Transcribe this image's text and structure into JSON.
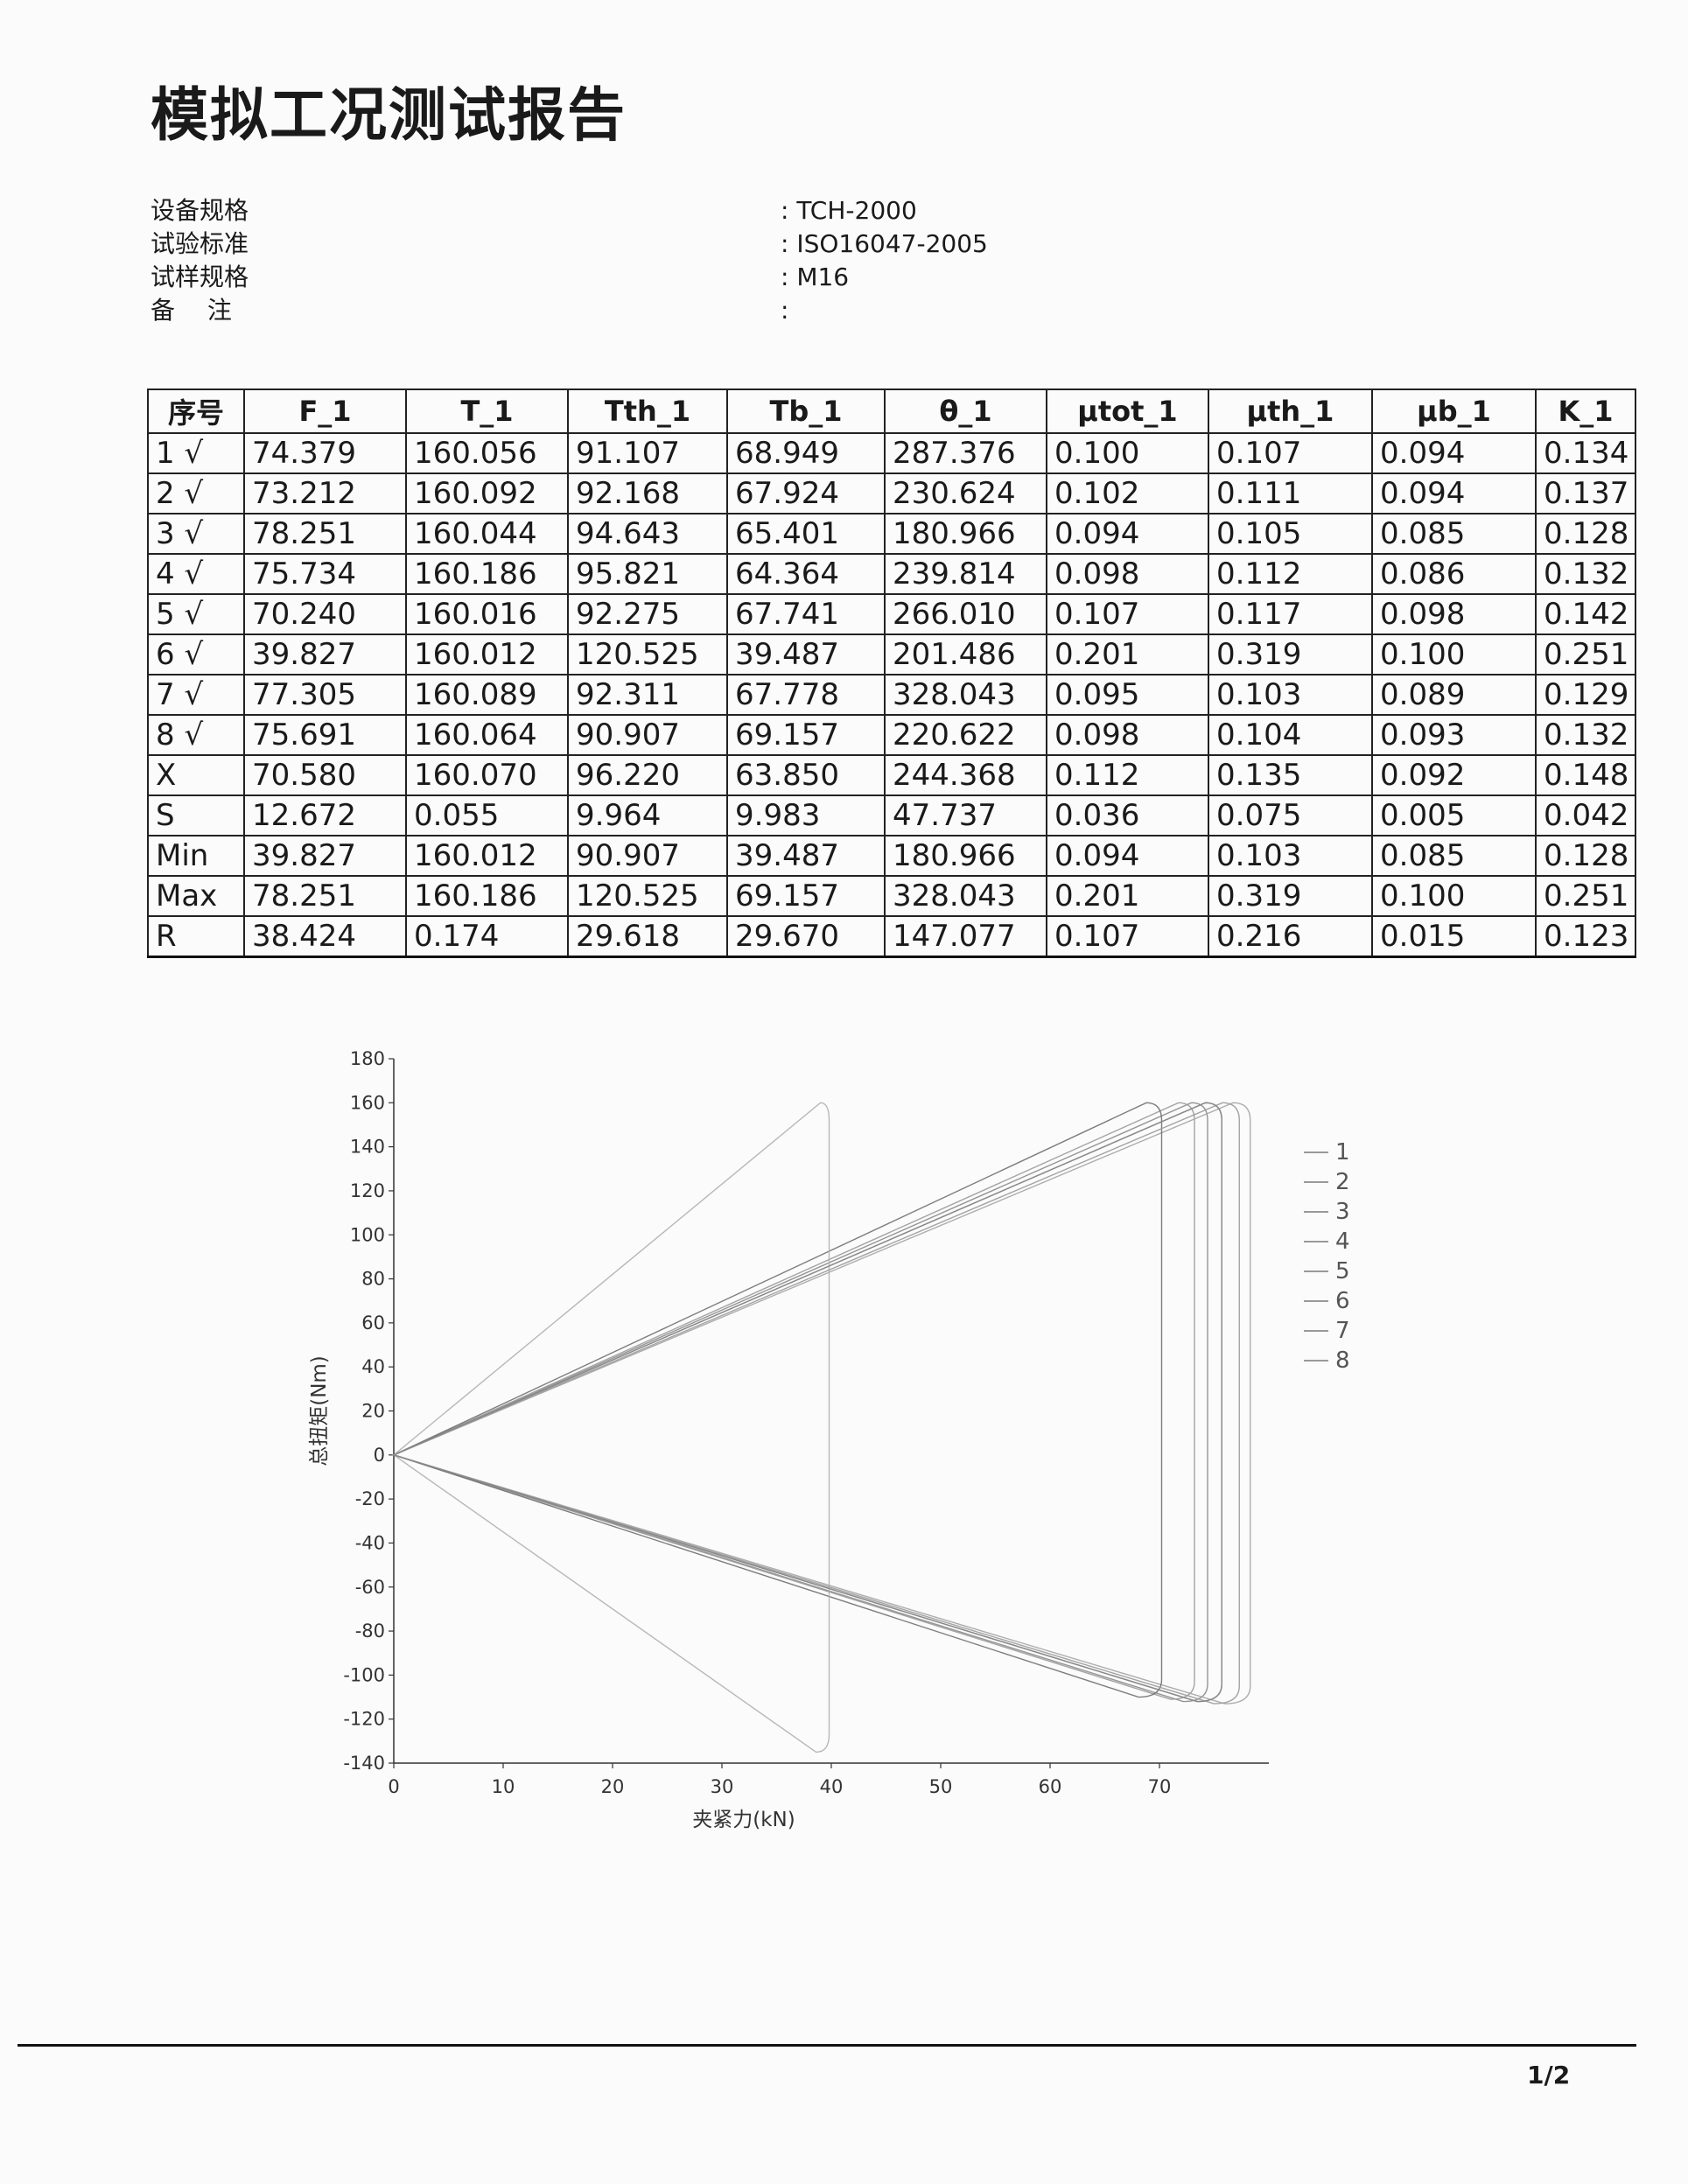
{
  "title": "模拟工况测试报告",
  "info": [
    {
      "label": "设备规格",
      "value": ": TCH-2000"
    },
    {
      "label": "试验标准",
      "value": ": ISO16047-2005"
    },
    {
      "label": "试样规格",
      "value": ": M16"
    },
    {
      "label": "备　 注",
      "value": ":"
    }
  ],
  "table": {
    "headers": [
      "序号",
      "F_1",
      "T_1",
      "Tth_1",
      "Tb_1",
      "θ_1",
      "μtot_1",
      "μth_1",
      "μb_1",
      "K_1"
    ],
    "rows": [
      [
        "1 √",
        "74.379",
        "160.056",
        "91.107",
        "68.949",
        "287.376",
        "0.100",
        "0.107",
        "0.094",
        "0.134"
      ],
      [
        "2 √",
        "73.212",
        "160.092",
        "92.168",
        "67.924",
        "230.624",
        "0.102",
        "0.111",
        "0.094",
        "0.137"
      ],
      [
        "3 √",
        "78.251",
        "160.044",
        "94.643",
        "65.401",
        "180.966",
        "0.094",
        "0.105",
        "0.085",
        "0.128"
      ],
      [
        "4 √",
        "75.734",
        "160.186",
        "95.821",
        "64.364",
        "239.814",
        "0.098",
        "0.112",
        "0.086",
        "0.132"
      ],
      [
        "5 √",
        "70.240",
        "160.016",
        "92.275",
        "67.741",
        "266.010",
        "0.107",
        "0.117",
        "0.098",
        "0.142"
      ],
      [
        "6 √",
        "39.827",
        "160.012",
        "120.525",
        "39.487",
        "201.486",
        "0.201",
        "0.319",
        "0.100",
        "0.251"
      ],
      [
        "7 √",
        "77.305",
        "160.089",
        "92.311",
        "67.778",
        "328.043",
        "0.095",
        "0.103",
        "0.089",
        "0.129"
      ],
      [
        "8 √",
        "75.691",
        "160.064",
        "90.907",
        "69.157",
        "220.622",
        "0.098",
        "0.104",
        "0.093",
        "0.132"
      ],
      [
        "X",
        "70.580",
        "160.070",
        "96.220",
        "63.850",
        "244.368",
        "0.112",
        "0.135",
        "0.092",
        "0.148"
      ],
      [
        "S",
        "12.672",
        "0.055",
        "9.964",
        "9.983",
        "47.737",
        "0.036",
        "0.075",
        "0.005",
        "0.042"
      ],
      [
        "Min",
        "39.827",
        "160.012",
        "90.907",
        "39.487",
        "180.966",
        "0.094",
        "0.103",
        "0.085",
        "0.128"
      ],
      [
        "Max",
        "78.251",
        "160.186",
        "120.525",
        "69.157",
        "328.043",
        "0.201",
        "0.319",
        "0.100",
        "0.251"
      ],
      [
        "R",
        "38.424",
        "0.174",
        "29.618",
        "29.670",
        "147.077",
        "0.107",
        "0.216",
        "0.015",
        "0.123"
      ]
    ]
  },
  "chart_data": {
    "type": "line",
    "xlabel": "夹紧力(kN)",
    "ylabel": "总扭矩(Nm)",
    "xlim": [
      0,
      80
    ],
    "ylim": [
      -140,
      180
    ],
    "xticks": [
      "0",
      "10",
      "20",
      "30",
      "40",
      "50",
      "60",
      "70"
    ],
    "yticks": [
      "180",
      "160",
      "140",
      "120",
      "100",
      "80",
      "60",
      "40",
      "20",
      "0",
      "-20",
      "-40",
      "-60",
      "-80",
      "-100",
      "-120",
      "-140"
    ],
    "series": [
      {
        "name": "1",
        "values": [
          [
            0,
            0
          ],
          [
            74.4,
            160
          ],
          [
            74.4,
            -112
          ],
          [
            0,
            0
          ]
        ]
      },
      {
        "name": "2",
        "values": [
          [
            0,
            0
          ],
          [
            73.2,
            160
          ],
          [
            73.2,
            -111
          ],
          [
            0,
            0
          ]
        ]
      },
      {
        "name": "3",
        "values": [
          [
            0,
            0
          ],
          [
            78.3,
            160
          ],
          [
            78.3,
            -113
          ],
          [
            0,
            0
          ]
        ]
      },
      {
        "name": "4",
        "values": [
          [
            0,
            0
          ],
          [
            75.7,
            160
          ],
          [
            75.7,
            -112
          ],
          [
            0,
            0
          ]
        ]
      },
      {
        "name": "5",
        "values": [
          [
            0,
            0
          ],
          [
            70.2,
            160
          ],
          [
            70.2,
            -110
          ],
          [
            0,
            0
          ]
        ]
      },
      {
        "name": "6",
        "values": [
          [
            0,
            0
          ],
          [
            39.8,
            160
          ],
          [
            39.8,
            -135
          ],
          [
            0,
            0
          ]
        ]
      },
      {
        "name": "7",
        "values": [
          [
            0,
            0
          ],
          [
            77.3,
            160
          ],
          [
            77.3,
            -113
          ],
          [
            0,
            0
          ]
        ]
      },
      {
        "name": "8",
        "values": [
          [
            0,
            0
          ],
          [
            75.7,
            160
          ],
          [
            75.7,
            -112
          ],
          [
            0,
            0
          ]
        ]
      }
    ],
    "legend_position": "right",
    "grid": false
  },
  "page_number": "1/2"
}
